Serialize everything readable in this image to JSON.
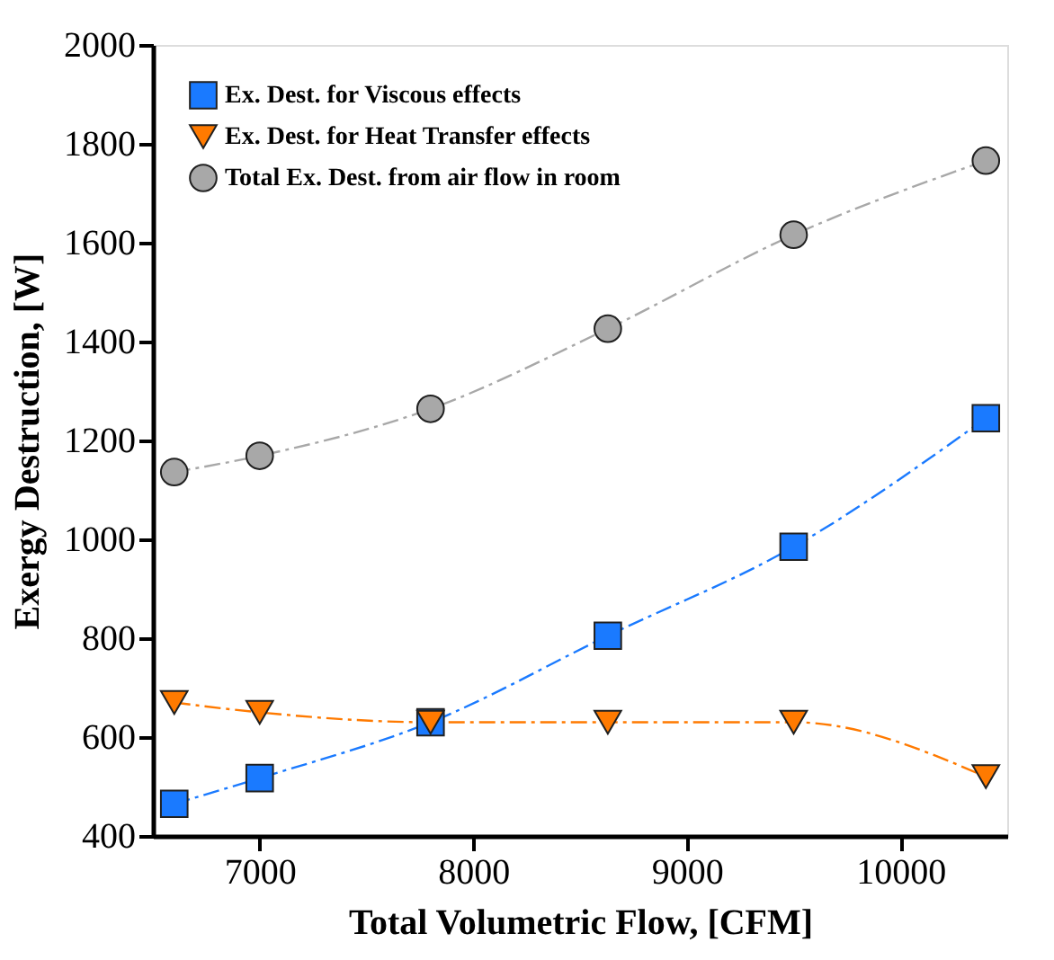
{
  "chart_data": {
    "type": "line",
    "xlabel": "Total Volumetric Flow, [CFM]",
    "ylabel": "Exergy Destruction, [W]",
    "x": [
      6600,
      7000,
      7800,
      8630,
      9500,
      10400
    ],
    "series": [
      {
        "name": "Ex. Dest. for Viscous effects",
        "color": "#1a7aff",
        "marker": "square",
        "values": [
          465,
          517,
          630,
          805,
          985,
          1245
        ]
      },
      {
        "name": "Ex. Dest. for Heat Transfer effects",
        "color": "#ff7a00",
        "marker": "triangle",
        "values": [
          670,
          650,
          630,
          630,
          630,
          520
        ]
      },
      {
        "name": "Total Ex. Dest. from air flow in room",
        "color": "#a8a8a8",
        "marker": "circle",
        "values": [
          1136,
          1169,
          1264,
          1426,
          1616,
          1766
        ]
      }
    ],
    "xlim": [
      6500,
      10500
    ],
    "xticks": [
      7000,
      8000,
      9000,
      10000
    ],
    "ylim": [
      400,
      2000
    ],
    "yticks": [
      400,
      600,
      800,
      1000,
      1200,
      1400,
      1600,
      1800,
      2000
    ],
    "grid": false,
    "legend": "top left",
    "line_style": "dashed"
  }
}
